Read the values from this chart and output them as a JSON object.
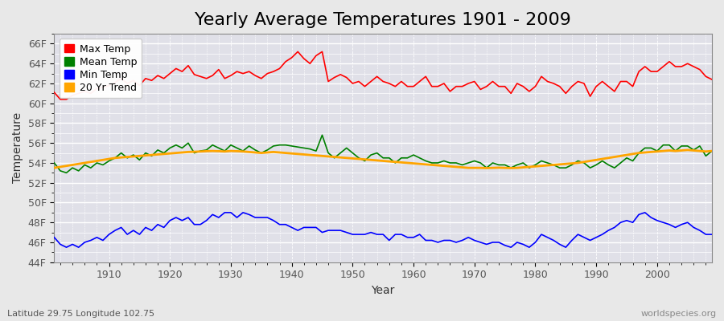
{
  "title": "Yearly Average Temperatures 1901 - 2009",
  "xlabel": "Year",
  "ylabel": "Temperature",
  "subtitle_left": "Latitude 29.75 Longitude 102.75",
  "subtitle_right": "worldspecies.org",
  "years": [
    1901,
    1902,
    1903,
    1904,
    1905,
    1906,
    1907,
    1908,
    1909,
    1910,
    1911,
    1912,
    1913,
    1914,
    1915,
    1916,
    1917,
    1918,
    1919,
    1920,
    1921,
    1922,
    1923,
    1924,
    1925,
    1926,
    1927,
    1928,
    1929,
    1930,
    1931,
    1932,
    1933,
    1934,
    1935,
    1936,
    1937,
    1938,
    1939,
    1940,
    1941,
    1942,
    1943,
    1944,
    1945,
    1946,
    1947,
    1948,
    1949,
    1950,
    1951,
    1952,
    1953,
    1954,
    1955,
    1956,
    1957,
    1958,
    1959,
    1960,
    1961,
    1962,
    1963,
    1964,
    1965,
    1966,
    1967,
    1968,
    1969,
    1970,
    1971,
    1972,
    1973,
    1974,
    1975,
    1976,
    1977,
    1978,
    1979,
    1980,
    1981,
    1982,
    1983,
    1984,
    1985,
    1986,
    1987,
    1988,
    1989,
    1990,
    1991,
    1992,
    1993,
    1994,
    1995,
    1996,
    1997,
    1998,
    1999,
    2000,
    2001,
    2002,
    2003,
    2004,
    2005,
    2006,
    2007,
    2008,
    2009
  ],
  "max_temp": [
    61.1,
    60.4,
    60.4,
    60.8,
    61.0,
    61.2,
    61.0,
    61.5,
    61.6,
    61.8,
    62.1,
    62.5,
    62.0,
    62.3,
    61.8,
    62.5,
    62.3,
    62.8,
    62.5,
    63.0,
    63.5,
    63.2,
    63.8,
    62.9,
    62.7,
    62.5,
    62.8,
    63.4,
    62.5,
    62.8,
    63.2,
    63.0,
    63.2,
    62.8,
    62.5,
    63.0,
    63.2,
    63.5,
    64.2,
    64.6,
    65.2,
    64.5,
    64.0,
    64.8,
    65.2,
    62.2,
    62.6,
    62.9,
    62.6,
    62.0,
    62.2,
    61.7,
    62.2,
    62.7,
    62.2,
    62.0,
    61.7,
    62.2,
    61.7,
    61.7,
    62.2,
    62.7,
    61.7,
    61.7,
    62.0,
    61.2,
    61.7,
    61.7,
    62.0,
    62.2,
    61.4,
    61.7,
    62.2,
    61.7,
    61.7,
    61.0,
    62.0,
    61.7,
    61.2,
    61.7,
    62.7,
    62.2,
    62.0,
    61.7,
    61.0,
    61.7,
    62.2,
    62.0,
    60.7,
    61.7,
    62.2,
    61.7,
    61.2,
    62.2,
    62.2,
    61.7,
    63.2,
    63.7,
    63.2,
    63.2,
    63.7,
    64.2,
    63.7,
    63.7,
    64.0,
    63.7,
    63.4,
    62.7,
    62.4
  ],
  "mean_temp": [
    54.0,
    53.2,
    53.0,
    53.5,
    53.2,
    53.8,
    53.5,
    54.0,
    53.8,
    54.2,
    54.5,
    55.0,
    54.5,
    54.8,
    54.3,
    55.0,
    54.7,
    55.3,
    55.0,
    55.5,
    55.8,
    55.5,
    56.0,
    55.0,
    55.2,
    55.3,
    55.8,
    55.5,
    55.2,
    55.8,
    55.5,
    55.2,
    55.7,
    55.3,
    55.0,
    55.3,
    55.7,
    55.8,
    55.8,
    55.7,
    55.6,
    55.5,
    55.4,
    55.2,
    56.8,
    55.0,
    54.5,
    55.0,
    55.5,
    55.0,
    54.5,
    54.2,
    54.8,
    55.0,
    54.5,
    54.5,
    54.0,
    54.5,
    54.5,
    54.8,
    54.5,
    54.2,
    54.0,
    54.0,
    54.2,
    54.0,
    54.0,
    53.8,
    54.0,
    54.2,
    54.0,
    53.5,
    54.0,
    53.8,
    53.8,
    53.5,
    53.8,
    54.0,
    53.5,
    53.8,
    54.2,
    54.0,
    53.8,
    53.5,
    53.5,
    53.8,
    54.2,
    54.0,
    53.5,
    53.8,
    54.2,
    53.8,
    53.5,
    54.0,
    54.5,
    54.2,
    55.0,
    55.5,
    55.5,
    55.2,
    55.8,
    55.8,
    55.2,
    55.7,
    55.7,
    55.3,
    55.7,
    54.7,
    55.2
  ],
  "min_temp": [
    46.5,
    45.8,
    45.5,
    45.8,
    45.5,
    46.0,
    46.2,
    46.5,
    46.2,
    46.8,
    47.2,
    47.5,
    46.8,
    47.2,
    46.8,
    47.5,
    47.2,
    47.8,
    47.5,
    48.2,
    48.5,
    48.2,
    48.5,
    47.8,
    47.8,
    48.2,
    48.8,
    48.5,
    49.0,
    49.0,
    48.5,
    49.0,
    48.8,
    48.5,
    48.5,
    48.5,
    48.2,
    47.8,
    47.8,
    47.5,
    47.2,
    47.5,
    47.5,
    47.5,
    47.0,
    47.2,
    47.2,
    47.2,
    47.0,
    46.8,
    46.8,
    46.8,
    47.0,
    46.8,
    46.8,
    46.2,
    46.8,
    46.8,
    46.5,
    46.5,
    46.8,
    46.2,
    46.2,
    46.0,
    46.2,
    46.2,
    46.0,
    46.2,
    46.5,
    46.2,
    46.0,
    45.8,
    46.0,
    46.0,
    45.7,
    45.5,
    46.0,
    45.8,
    45.5,
    46.0,
    46.8,
    46.5,
    46.2,
    45.8,
    45.5,
    46.2,
    46.8,
    46.5,
    46.2,
    46.5,
    46.8,
    47.2,
    47.5,
    48.0,
    48.2,
    48.0,
    48.8,
    49.0,
    48.5,
    48.2,
    48.0,
    47.8,
    47.5,
    47.8,
    48.0,
    47.5,
    47.2,
    46.8,
    46.8
  ],
  "trend_temp": [
    53.5,
    53.6,
    53.7,
    53.8,
    53.9,
    54.0,
    54.1,
    54.2,
    54.3,
    54.4,
    54.5,
    54.55,
    54.6,
    54.65,
    54.7,
    54.75,
    54.8,
    54.85,
    54.9,
    54.95,
    55.0,
    55.05,
    55.1,
    55.12,
    55.15,
    55.18,
    55.2,
    55.18,
    55.15,
    55.2,
    55.18,
    55.15,
    55.1,
    55.05,
    55.0,
    55.05,
    55.1,
    55.05,
    55.0,
    54.95,
    54.9,
    54.85,
    54.8,
    54.75,
    54.7,
    54.65,
    54.6,
    54.55,
    54.5,
    54.45,
    54.4,
    54.35,
    54.3,
    54.25,
    54.2,
    54.15,
    54.1,
    54.05,
    54.0,
    53.95,
    53.9,
    53.85,
    53.8,
    53.75,
    53.7,
    53.65,
    53.6,
    53.55,
    53.5,
    53.5,
    53.5,
    53.48,
    53.5,
    53.52,
    53.5,
    53.48,
    53.5,
    53.55,
    53.6,
    53.65,
    53.7,
    53.75,
    53.8,
    53.85,
    53.9,
    53.95,
    54.0,
    54.1,
    54.2,
    54.3,
    54.4,
    54.5,
    54.6,
    54.7,
    54.8,
    54.9,
    55.0,
    55.05,
    55.1,
    55.15,
    55.2,
    55.25,
    55.2,
    55.25,
    55.3,
    55.25,
    55.2,
    55.15,
    55.2
  ],
  "max_color": "#ff0000",
  "mean_color": "#008000",
  "min_color": "#0000ff",
  "trend_color": "#ffa500",
  "bg_color": "#e8e8e8",
  "plot_bg_color": "#e0e0e8",
  "grid_color": "#ffffff",
  "ylim": [
    44,
    67
  ],
  "yticks": [
    44,
    46,
    48,
    50,
    52,
    54,
    56,
    58,
    60,
    62,
    64,
    66
  ],
  "ytick_labels": [
    "44F",
    "46F",
    "48F",
    "50F",
    "52F",
    "54F",
    "56F",
    "58F",
    "60F",
    "62F",
    "64F",
    "66F"
  ],
  "title_fontsize": 16,
  "axis_fontsize": 10,
  "tick_fontsize": 9,
  "legend_fontsize": 9,
  "line_width": 1.2
}
